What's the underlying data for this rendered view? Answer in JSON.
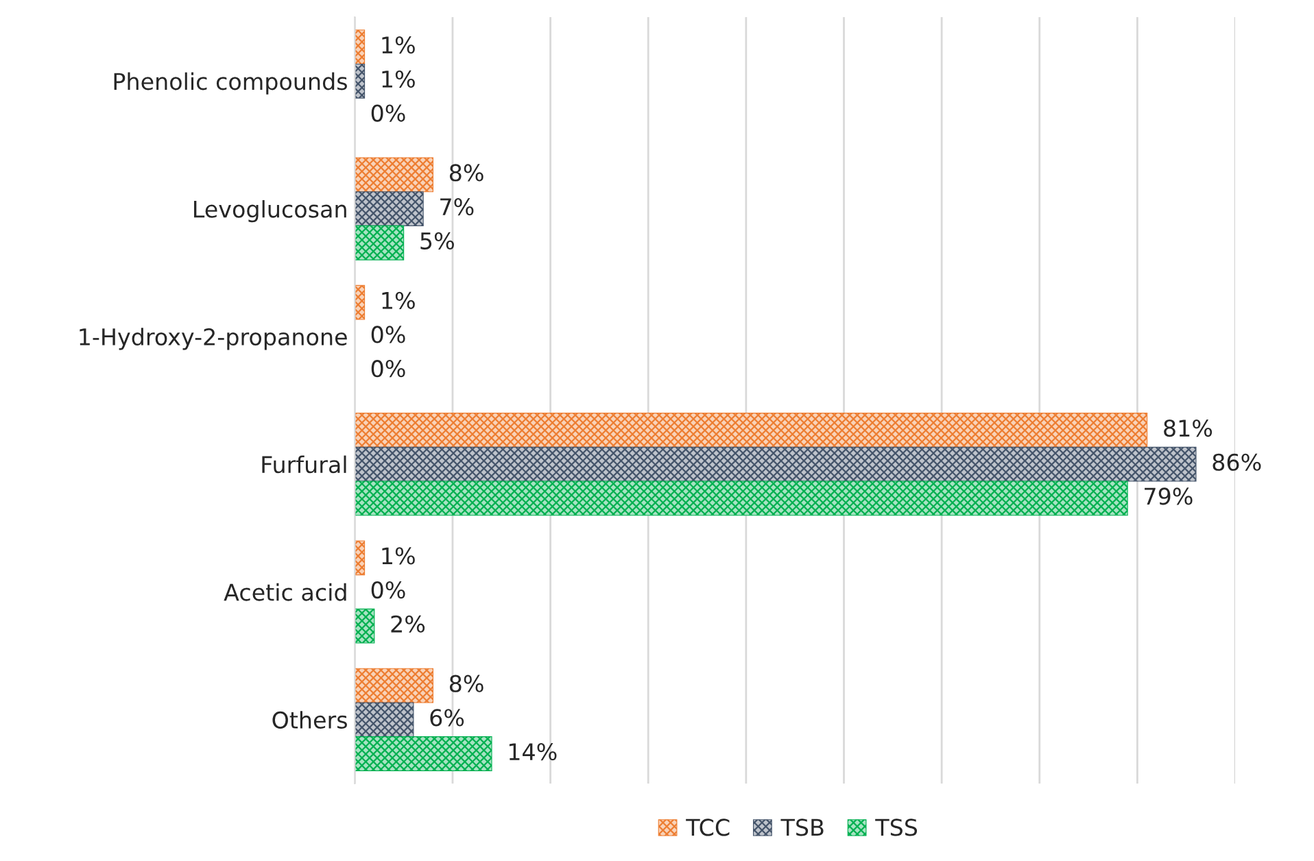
{
  "chart_data": {
    "type": "bar",
    "orientation": "horizontal",
    "categories": [
      "Phenolic compounds",
      "Levoglucosan",
      "1-Hydroxy-2-propanone",
      "Furfural",
      "Acetic acid",
      "Others"
    ],
    "series": [
      {
        "name": "TCC",
        "color": "#ed7d31",
        "values": [
          1,
          8,
          1,
          81,
          1,
          8
        ],
        "value_labels": [
          "1%",
          "8%",
          "1%",
          "81%",
          "1%",
          "8%"
        ]
      },
      {
        "name": "TSB",
        "color": "#44546a",
        "values": [
          1,
          7,
          0,
          86,
          0,
          6
        ],
        "value_labels": [
          "1%",
          "7%",
          "0%",
          "86%",
          "0%",
          "6%"
        ]
      },
      {
        "name": "TSS",
        "color": "#00b050",
        "values": [
          0,
          5,
          0,
          79,
          2,
          14
        ],
        "value_labels": [
          "0%",
          "5%",
          "0%",
          "79%",
          "2%",
          "14%"
        ]
      }
    ],
    "xlim": [
      0,
      90
    ],
    "xticks": [
      {
        "value": 0,
        "label": null
      },
      {
        "value": 10,
        "label": null
      },
      {
        "value": 20,
        "label": null
      },
      {
        "value": 30,
        "label": null
      },
      {
        "value": 40,
        "label": null
      },
      {
        "value": 50,
        "label": null
      },
      {
        "value": 60,
        "label": null
      },
      {
        "value": 70,
        "label": null
      },
      {
        "value": 80,
        "label": null
      },
      {
        "value": 90,
        "label": null
      }
    ],
    "tick_labels": "y",
    "grid": "x",
    "legend": "bottom"
  }
}
